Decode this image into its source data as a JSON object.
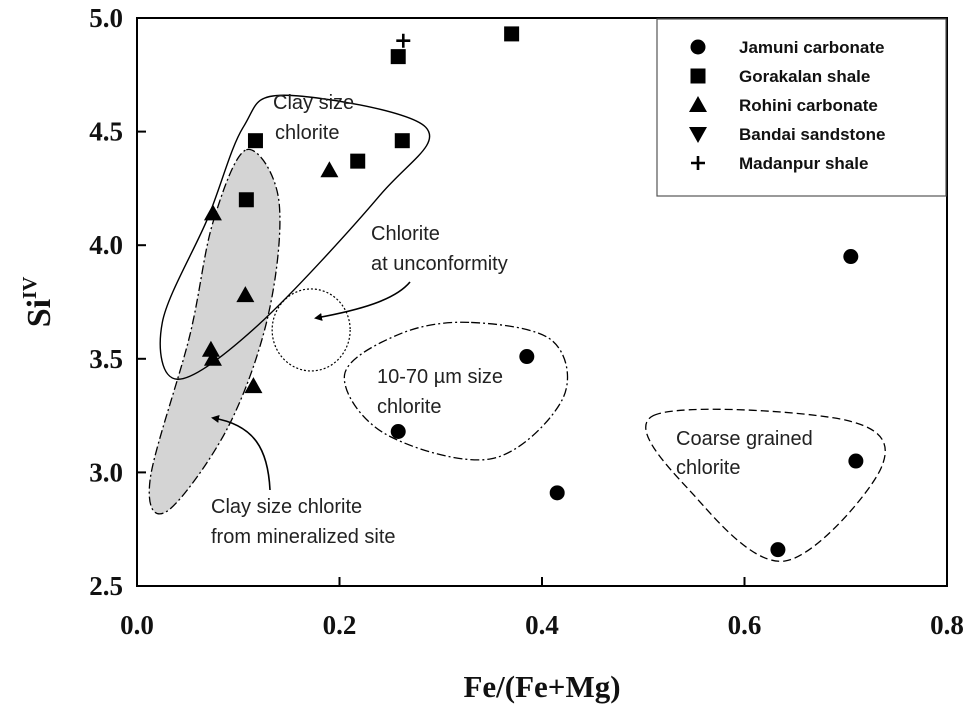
{
  "chart_data": {
    "type": "scatter",
    "xlabel": "Fe/(Fe+Mg)",
    "ylabel_base": "Si",
    "ylabel_sup": "IV",
    "xlim": [
      0.0,
      0.8
    ],
    "ylim": [
      2.5,
      5.0
    ],
    "x_ticks": [
      "0.0",
      "0.2",
      "0.4",
      "0.6",
      "0.8"
    ],
    "y_ticks": [
      "2.5",
      "3.0",
      "3.5",
      "4.0",
      "4.5",
      "5.0"
    ],
    "legend_position": "top-right",
    "series": [
      {
        "name": "Jamuni carbonate",
        "marker": "circle",
        "points": [
          [
            0.705,
            3.95
          ],
          [
            0.385,
            3.51
          ],
          [
            0.258,
            3.18
          ],
          [
            0.415,
            2.91
          ],
          [
            0.71,
            3.05
          ],
          [
            0.633,
            2.66
          ]
        ]
      },
      {
        "name": "Gorakalan shale",
        "marker": "square",
        "points": [
          [
            0.37,
            4.93
          ],
          [
            0.258,
            4.83
          ],
          [
            0.117,
            4.46
          ],
          [
            0.262,
            4.46
          ],
          [
            0.218,
            4.37
          ],
          [
            0.108,
            4.2
          ]
        ]
      },
      {
        "name": "Rohini carbonate",
        "marker": "triangle-up",
        "points": [
          [
            0.19,
            4.33
          ],
          [
            0.075,
            4.14
          ],
          [
            0.107,
            3.78
          ],
          [
            0.073,
            3.54
          ],
          [
            0.075,
            3.5
          ],
          [
            0.115,
            3.38
          ]
        ]
      },
      {
        "name": "Bandai sandstone",
        "marker": "triangle-down",
        "points": []
      },
      {
        "name": "Madanpur shale",
        "marker": "plus",
        "points": [
          [
            0.263,
            4.9
          ]
        ]
      }
    ],
    "annotations": {
      "clay_size": [
        "Clay size",
        "chlorite"
      ],
      "unconformity": [
        "Chlorite",
        "at unconformity"
      ],
      "size_10_70": [
        "10-70 µm size",
        "chlorite"
      ],
      "coarse": [
        "Coarse grained",
        "chlorite"
      ],
      "mineralized": [
        "Clay size chlorite",
        "from mineralized site"
      ]
    }
  }
}
